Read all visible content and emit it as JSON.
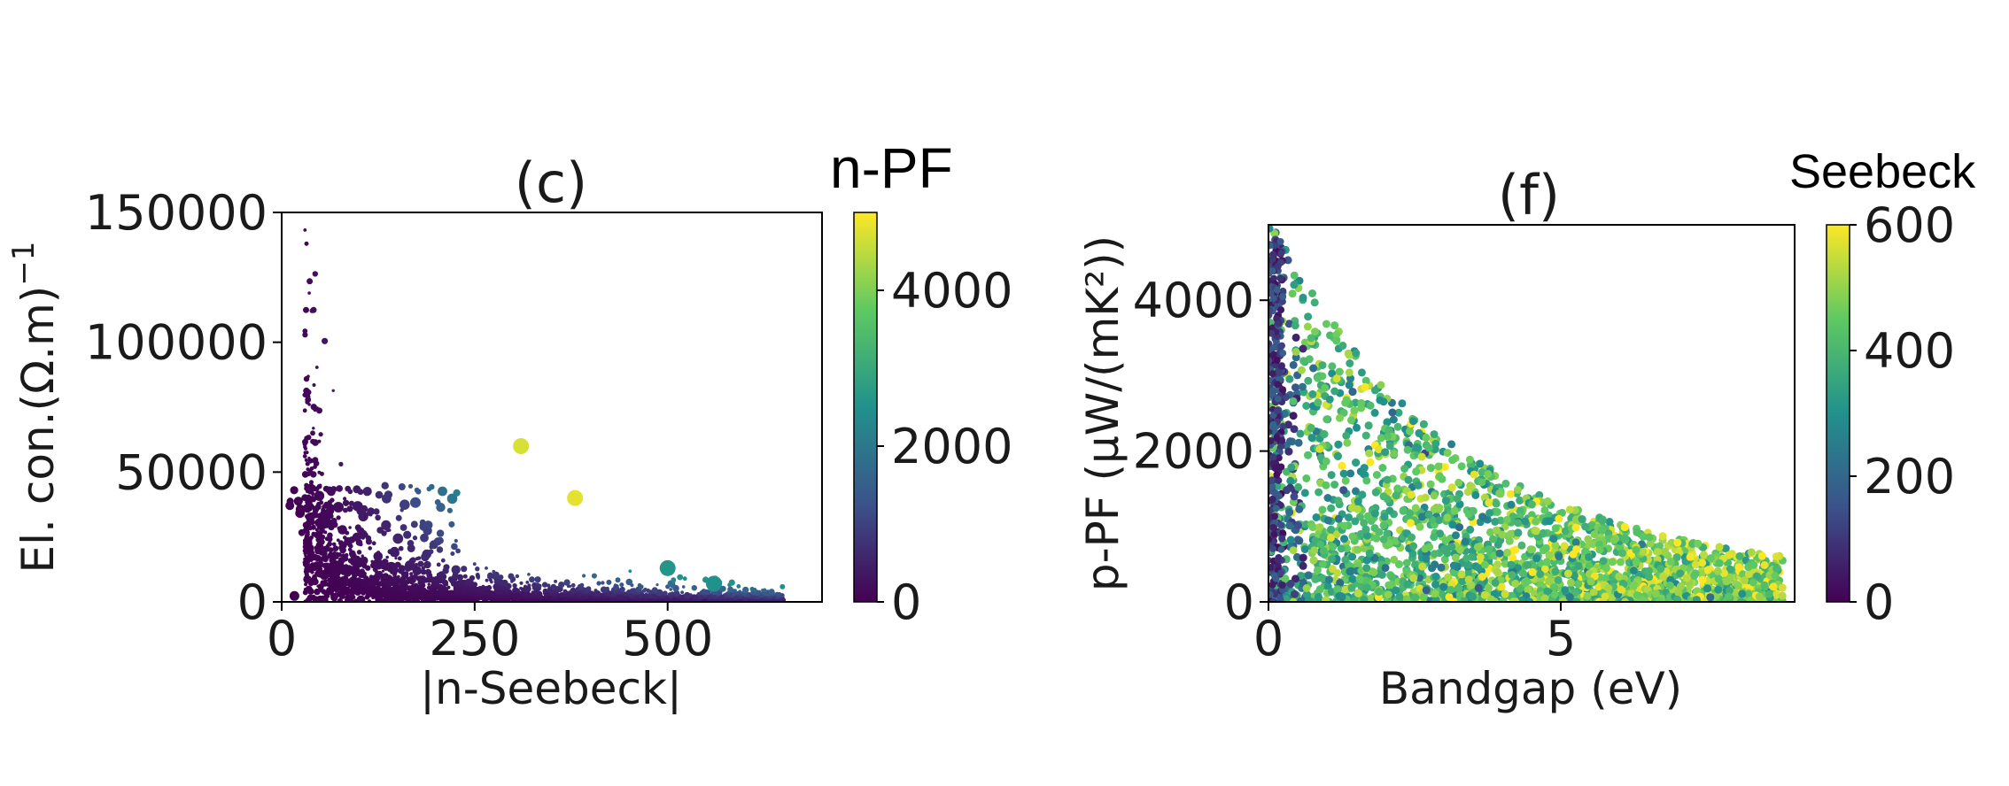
{
  "chart_data": [
    {
      "type": "scatter",
      "panel": "c",
      "title": "(c)",
      "xlabel": "|n-Seebeck|",
      "ylabel": "El. con.(Ω.m)",
      "ylabel_exponent": "−1",
      "xlim": [
        0,
        700
      ],
      "ylim": [
        0,
        150000
      ],
      "x_ticks": [
        "0",
        "250",
        "500"
      ],
      "x_tick_values": [
        0,
        250,
        500
      ],
      "y_ticks": [
        "0",
        "50000",
        "100000",
        "150000"
      ],
      "y_tick_values": [
        0,
        50000,
        100000,
        150000
      ],
      "colorbar": {
        "title": "n-PF",
        "range": [
          0,
          5000
        ],
        "ticks": [
          "0",
          "2000",
          "4000"
        ],
        "tick_values": [
          0,
          2000,
          4000
        ],
        "colormap": "viridis"
      },
      "distribution": "inverse relation: conductivity ≈ 7.5e6 / |Seebeck|^1.3 band; color (power factor) increases toward upper-right edge",
      "highlight_points": [
        {
          "x": 500,
          "y": 13000,
          "c": 2600
        },
        {
          "x": 560,
          "y": 7000,
          "c": 2500
        },
        {
          "x": 310,
          "y": 60000,
          "c": 4700
        },
        {
          "x": 380,
          "y": 40000,
          "c": 4800
        }
      ]
    },
    {
      "type": "scatter",
      "panel": "f",
      "title": "(f)",
      "xlabel": "Bandgap (eV)",
      "ylabel": "p-PF (μW/(mK²))",
      "xlim": [
        0,
        9
      ],
      "ylim": [
        0,
        5000
      ],
      "x_ticks": [
        "0",
        "5"
      ],
      "x_tick_values": [
        0,
        5
      ],
      "y_ticks": [
        "0",
        "2000",
        "4000"
      ],
      "y_tick_values": [
        0,
        2000,
        4000
      ],
      "colorbar": {
        "title": "Seebeck",
        "range": [
          0,
          600
        ],
        "ticks": [
          "0",
          "200",
          "400",
          "600"
        ],
        "tick_values": [
          0,
          200,
          400,
          600
        ],
        "colormap": "viridis"
      },
      "distribution": "dense cloud for bandgap 0–6 eV, power factor decreasing with bandgap; Seebeck mostly 300–550; low-Seebeck (dark) points concentrated near bandgap 0"
    }
  ],
  "colors": {
    "viridis_stops": [
      "#440154",
      "#3b528b",
      "#21918c",
      "#5ec962",
      "#fde725"
    ]
  }
}
